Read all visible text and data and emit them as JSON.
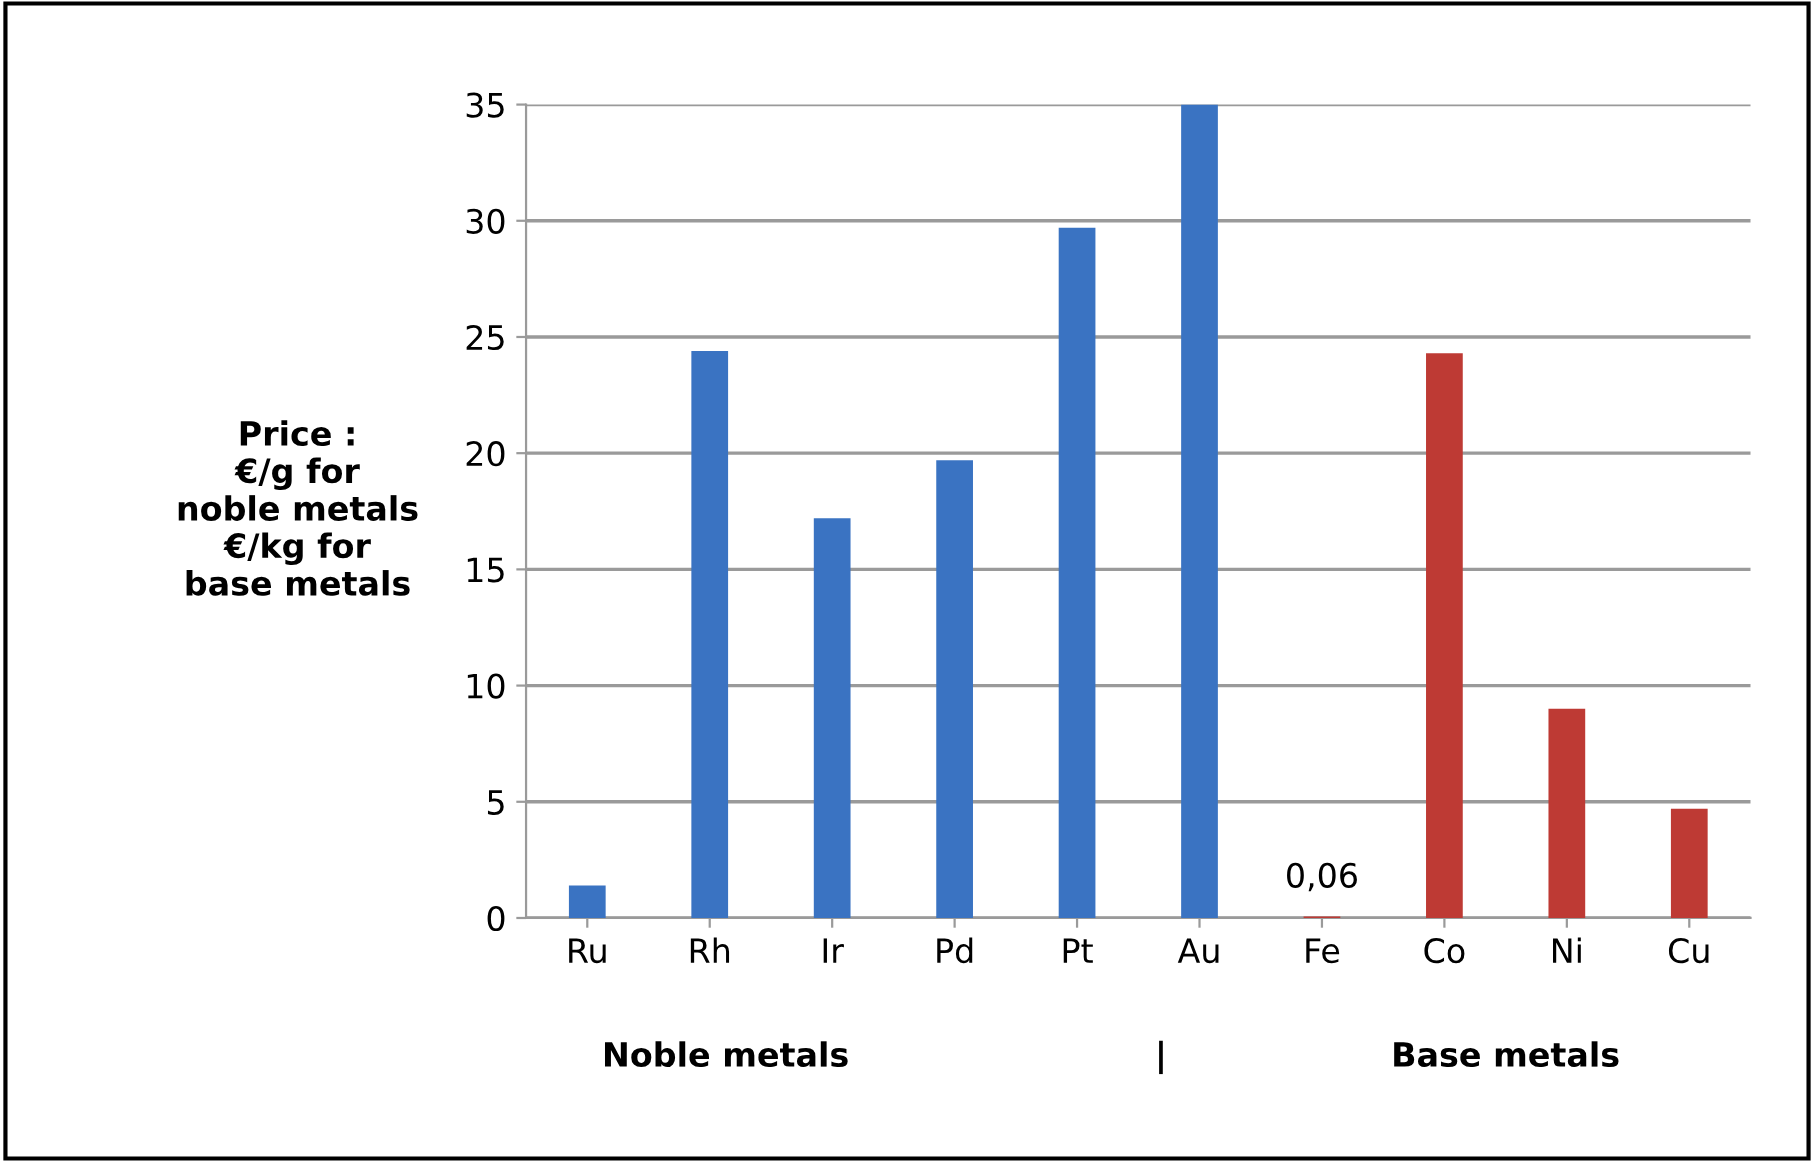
{
  "chart_data": {
    "type": "bar",
    "ylabel": "Price :\n€/g for\nnoble metals\n€/kg for\nbase metals",
    "categories": [
      "Ru",
      "Rh",
      "Ir",
      "Pd",
      "Pt",
      "Au",
      "Fe",
      "Co",
      "Ni",
      "Cu"
    ],
    "values": [
      1.4,
      24.4,
      17.2,
      19.7,
      29.7,
      35,
      0.06,
      24.3,
      9.0,
      4.7
    ],
    "colors": [
      "#3a73c2",
      "#3a73c2",
      "#3a73c2",
      "#3a73c2",
      "#3a73c2",
      "#3a73c2",
      "#be3a34",
      "#be3a34",
      "#be3a34",
      "#be3a34"
    ],
    "value_labels": [
      null,
      null,
      null,
      null,
      null,
      null,
      "0,06",
      null,
      null,
      null
    ],
    "annotations": [
      "Noble metals",
      "|",
      "Base metals"
    ],
    "ylim": [
      0,
      35
    ],
    "yticks": [
      0,
      5,
      10,
      15,
      20,
      25,
      30,
      35
    ],
    "grid": "y"
  }
}
